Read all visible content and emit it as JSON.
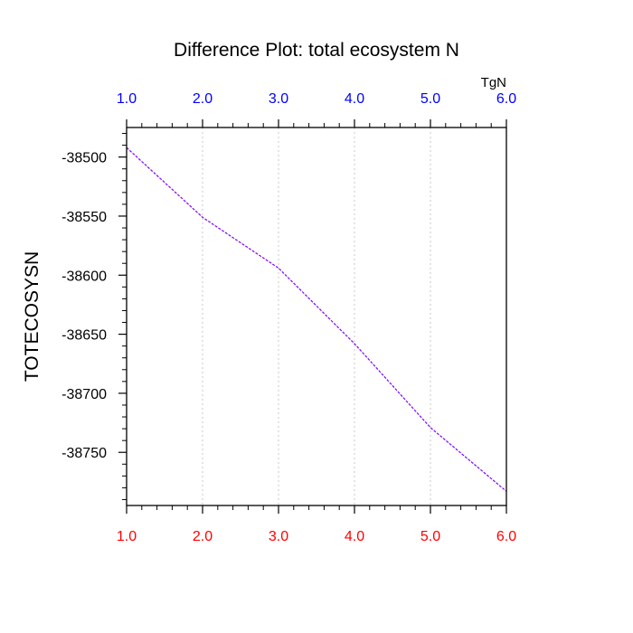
{
  "chart_data": {
    "type": "line",
    "title": "Difference Plot: total ecosystem N",
    "ylabel": "TOTECOSYSN",
    "top_axis_unit": "TgN",
    "xlim": [
      1.0,
      6.0
    ],
    "ylim": [
      -38795,
      -38475
    ],
    "x_ticks": [
      "1.0",
      "2.0",
      "3.0",
      "4.0",
      "5.0",
      "6.0"
    ],
    "y_ticks": [
      "-38500",
      "-38550",
      "-38600",
      "-38650",
      "-38700",
      "-38750"
    ],
    "grid": "vertical-dotted",
    "colors": {
      "top_tick_labels": "#0000ff",
      "bottom_tick_labels": "#ff0000",
      "line": "#7f00ff",
      "grid": "#c8c8c8"
    },
    "series": [
      {
        "x": [
          1.0,
          2.0,
          3.0,
          4.0,
          5.0,
          6.0
        ],
        "values": [
          -38492,
          -38551,
          -38594,
          -38658,
          -38729,
          -38783
        ]
      }
    ]
  }
}
